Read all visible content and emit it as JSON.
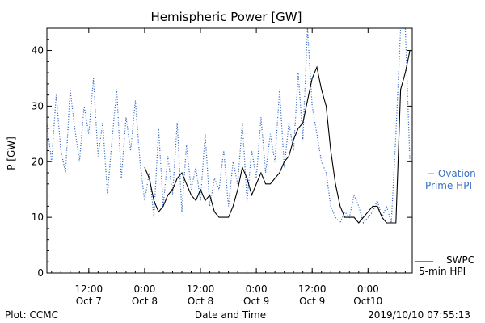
{
  "chart_data": {
    "type": "line",
    "title": "Hemispheric Power [GW]",
    "xlabel": "Date and Time",
    "ylabel": "P [GW]",
    "ylim": [
      0,
      44
    ],
    "xlim": [
      "2019-10-07 03:00",
      "2019-10-10 09:30"
    ],
    "y_ticks": [
      0,
      10,
      20,
      30,
      40
    ],
    "x_ticks": [
      {
        "time": "2019-10-07 12:00",
        "label1": "12:00",
        "label2": "Oct 7"
      },
      {
        "time": "2019-10-08 00:00",
        "label1": "0:00",
        "label2": "Oct 8"
      },
      {
        "time": "2019-10-08 12:00",
        "label1": "12:00",
        "label2": "Oct 8"
      },
      {
        "time": "2019-10-09 00:00",
        "label1": "0:00",
        "label2": "Oct 9"
      },
      {
        "time": "2019-10-09 12:00",
        "label1": "12:00",
        "label2": "Oct 9"
      },
      {
        "time": "2019-10-10 00:00",
        "label1": "0:00",
        "label2": "Oct10"
      }
    ],
    "grid": false,
    "legend_position": "right",
    "series": [
      {
        "name": "Ovation Prime HPI",
        "legend_lines": [
          "− Ovation",
          "Prime HPI"
        ],
        "style": "dotted",
        "color": "#3a6fc4",
        "x": [
          "2019-10-07 03:00",
          "2019-10-07 04:00",
          "2019-10-07 05:00",
          "2019-10-07 06:00",
          "2019-10-07 07:00",
          "2019-10-07 08:00",
          "2019-10-07 09:00",
          "2019-10-07 10:00",
          "2019-10-07 11:00",
          "2019-10-07 12:00",
          "2019-10-07 13:00",
          "2019-10-07 14:00",
          "2019-10-07 15:00",
          "2019-10-07 16:00",
          "2019-10-07 17:00",
          "2019-10-07 18:00",
          "2019-10-07 19:00",
          "2019-10-07 20:00",
          "2019-10-07 21:00",
          "2019-10-07 22:00",
          "2019-10-07 23:00",
          "2019-10-08 00:00",
          "2019-10-08 01:00",
          "2019-10-08 02:00",
          "2019-10-08 03:00",
          "2019-10-08 04:00",
          "2019-10-08 05:00",
          "2019-10-08 06:00",
          "2019-10-08 07:00",
          "2019-10-08 08:00",
          "2019-10-08 09:00",
          "2019-10-08 10:00",
          "2019-10-08 11:00",
          "2019-10-08 12:00",
          "2019-10-08 13:00",
          "2019-10-08 14:00",
          "2019-10-08 15:00",
          "2019-10-08 16:00",
          "2019-10-08 17:00",
          "2019-10-08 18:00",
          "2019-10-08 19:00",
          "2019-10-08 20:00",
          "2019-10-08 21:00",
          "2019-10-08 22:00",
          "2019-10-08 23:00",
          "2019-10-09 00:00",
          "2019-10-09 01:00",
          "2019-10-09 02:00",
          "2019-10-09 03:00",
          "2019-10-09 04:00",
          "2019-10-09 05:00",
          "2019-10-09 06:00",
          "2019-10-09 07:00",
          "2019-10-09 08:00",
          "2019-10-09 09:00",
          "2019-10-09 10:00",
          "2019-10-09 11:00",
          "2019-10-09 12:00",
          "2019-10-09 13:00",
          "2019-10-09 14:00",
          "2019-10-09 15:00",
          "2019-10-09 16:00",
          "2019-10-09 17:00",
          "2019-10-09 18:00",
          "2019-10-09 19:00",
          "2019-10-09 20:00",
          "2019-10-09 21:00",
          "2019-10-09 22:00",
          "2019-10-09 23:00",
          "2019-10-10 00:00",
          "2019-10-10 01:00",
          "2019-10-10 02:00",
          "2019-10-10 03:00",
          "2019-10-10 04:00",
          "2019-10-10 05:00",
          "2019-10-10 06:00",
          "2019-10-10 07:00",
          "2019-10-10 08:00",
          "2019-10-10 09:00"
        ],
        "values": [
          27,
          20,
          32,
          22,
          18,
          33,
          26,
          20,
          30,
          25,
          35,
          21,
          27,
          14,
          24,
          33,
          17,
          28,
          22,
          31,
          20,
          13,
          18,
          10,
          26,
          12,
          21,
          14,
          27,
          11,
          23,
          15,
          19,
          13,
          25,
          12,
          17,
          15,
          22,
          12,
          20,
          16,
          27,
          13,
          22,
          17,
          28,
          18,
          25,
          20,
          33,
          19,
          27,
          22,
          36,
          24,
          44,
          30,
          25,
          20,
          18,
          12,
          10,
          9,
          11,
          10,
          14,
          12,
          9,
          10,
          11,
          13,
          10,
          12,
          9,
          25,
          44,
          44,
          20
        ]
      },
      {
        "name": "SWPC 5-min HPI",
        "legend_lines": [
          "SWPC",
          "5-min HPI"
        ],
        "style": "solid",
        "color": "#000000",
        "x": [
          "2019-10-08 00:00",
          "2019-10-08 01:00",
          "2019-10-08 02:00",
          "2019-10-08 03:00",
          "2019-10-08 04:00",
          "2019-10-08 05:00",
          "2019-10-08 06:00",
          "2019-10-08 07:00",
          "2019-10-08 08:00",
          "2019-10-08 09:00",
          "2019-10-08 10:00",
          "2019-10-08 11:00",
          "2019-10-08 12:00",
          "2019-10-08 13:00",
          "2019-10-08 14:00",
          "2019-10-08 15:00",
          "2019-10-08 16:00",
          "2019-10-08 17:00",
          "2019-10-08 18:00",
          "2019-10-08 19:00",
          "2019-10-08 20:00",
          "2019-10-08 21:00",
          "2019-10-08 22:00",
          "2019-10-08 23:00",
          "2019-10-09 00:00",
          "2019-10-09 01:00",
          "2019-10-09 02:00",
          "2019-10-09 03:00",
          "2019-10-09 04:00",
          "2019-10-09 05:00",
          "2019-10-09 06:00",
          "2019-10-09 07:00",
          "2019-10-09 08:00",
          "2019-10-09 09:00",
          "2019-10-09 10:00",
          "2019-10-09 11:00",
          "2019-10-09 12:00",
          "2019-10-09 13:00",
          "2019-10-09 14:00",
          "2019-10-09 15:00",
          "2019-10-09 16:00",
          "2019-10-09 17:00",
          "2019-10-09 18:00",
          "2019-10-09 19:00",
          "2019-10-09 20:00",
          "2019-10-09 21:00",
          "2019-10-09 22:00",
          "2019-10-09 23:00",
          "2019-10-10 00:00",
          "2019-10-10 01:00",
          "2019-10-10 02:00",
          "2019-10-10 03:00",
          "2019-10-10 04:00",
          "2019-10-10 05:00",
          "2019-10-10 06:00",
          "2019-10-10 07:00",
          "2019-10-10 08:00",
          "2019-10-10 09:00"
        ],
        "values": [
          19,
          17,
          13,
          11,
          12,
          14,
          15,
          17,
          18,
          16,
          14,
          13,
          15,
          13,
          14,
          11,
          10,
          10,
          10,
          12,
          15,
          19,
          17,
          14,
          16,
          18,
          16,
          16,
          17,
          18,
          20,
          21,
          24,
          26,
          27,
          31,
          35,
          37,
          33,
          30,
          22,
          16,
          12,
          10,
          10,
          10,
          9,
          10,
          11,
          12,
          12,
          10,
          9,
          9,
          9,
          33,
          36,
          40
        ]
      }
    ]
  },
  "footer": {
    "left": "Plot: CCMC",
    "right": "2019/10/10 07:55:13"
  }
}
